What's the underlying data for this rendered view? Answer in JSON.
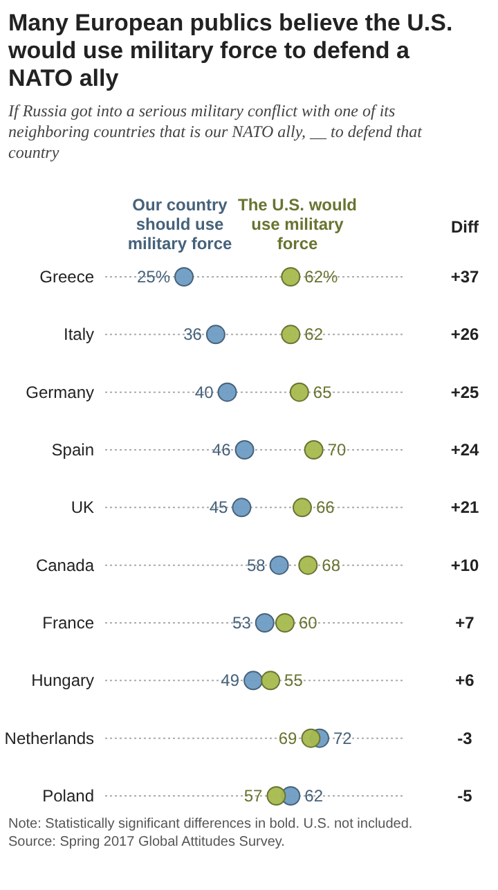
{
  "chart_data": {
    "type": "scatter",
    "orientation": "horizontal",
    "title": "Many European publics believe the U.S. would use military force to defend a NATO ally",
    "subtitle": "If Russia got into a serious military conflict with one of its neighboring countries that is our NATO ally, __ to defend that country",
    "categories": [
      "Greece",
      "Italy",
      "Germany",
      "Spain",
      "UK",
      "Canada",
      "France",
      "Hungary",
      "Netherlands",
      "Poland"
    ],
    "tick_labels": "y",
    "legend": "top",
    "marker": "circle",
    "grid": "y",
    "series": [
      {
        "name": "Our country should use military force",
        "color": "#6f9cc4",
        "values": [
          25,
          36,
          40,
          46,
          45,
          58,
          53,
          49,
          72,
          62
        ],
        "value_labels": [
          "25%",
          "36",
          "40",
          "46",
          "45",
          "58",
          "53",
          "49",
          "72",
          "62"
        ]
      },
      {
        "name": "The U.S. would use military force",
        "color": "#a7b94e",
        "values": [
          62,
          62,
          65,
          70,
          66,
          68,
          60,
          55,
          69,
          57
        ],
        "value_labels": [
          "62%",
          "62",
          "65",
          "70",
          "66",
          "68",
          "60",
          "55",
          "69",
          "57"
        ]
      }
    ],
    "annotations": [
      "Diff",
      "+37",
      "+26",
      "+25",
      "+24",
      "+21",
      "+10",
      "+7",
      "+6",
      "-3",
      "-5",
      "Note: Statistically significant differences in bold. U.S. not included.",
      "Source: Spring 2017 Global Attitudes Survey."
    ]
  }
}
